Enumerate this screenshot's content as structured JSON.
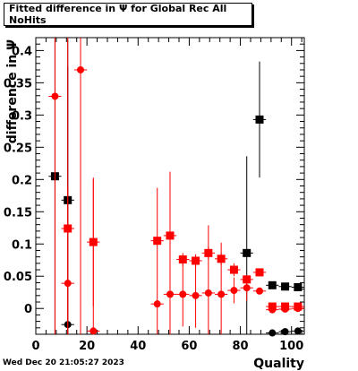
{
  "header": {
    "title": "Fitted difference in Ψ  for Global Rec All NoHits"
  },
  "footer": {
    "timestamp": "Wed Dec 20 21:05:27 2023"
  },
  "chart_data": {
    "type": "scatter",
    "title": "Fitted difference in Ψ  for Global Rec All NoHits",
    "xlabel": "Quality",
    "ylabel": "difference in Ψ",
    "xlim": [
      0,
      105
    ],
    "ylim": [
      -0.04,
      0.42
    ],
    "x_ticks": [
      "0",
      "20",
      "40",
      "60",
      "80",
      "100"
    ],
    "y_ticks": [
      "0",
      "0.05",
      "0.1",
      "0.15",
      "0.2",
      "0.25",
      "0.3",
      "0.35",
      "0.4"
    ],
    "series": [
      {
        "color": "#000000",
        "marker": "square",
        "points": [
          {
            "x": 7.5,
            "y": 0.205,
            "err": 0.42
          },
          {
            "x": 12.5,
            "y": 0.168,
            "err": 0.25
          },
          {
            "x": 82.5,
            "y": 0.086,
            "err": 0.15
          },
          {
            "x": 87.5,
            "y": 0.293,
            "err": 0.09
          },
          {
            "x": 92.5,
            "y": 0.036,
            "err": 0.005
          },
          {
            "x": 97.5,
            "y": 0.034,
            "err": 0.005
          },
          {
            "x": 102.5,
            "y": 0.033,
            "err": 0.005
          }
        ]
      },
      {
        "color": "#000000",
        "marker": "circle",
        "points": [
          {
            "x": 12.5,
            "y": -0.025,
            "err": 0.4
          },
          {
            "x": 92.5,
            "y": -0.038,
            "err": 0.004
          },
          {
            "x": 97.5,
            "y": -0.036,
            "err": 0.004
          },
          {
            "x": 102.5,
            "y": -0.035,
            "err": 0.004
          }
        ]
      },
      {
        "color": "#ff0000",
        "marker": "square",
        "points": [
          {
            "x": 12.5,
            "y": 0.124,
            "err": 0.3
          },
          {
            "x": 22.5,
            "y": 0.103,
            "err": 0.1
          },
          {
            "x": 47.5,
            "y": 0.105,
            "err": 0.005
          },
          {
            "x": 52.5,
            "y": 0.113,
            "err": 0.01
          },
          {
            "x": 57.5,
            "y": 0.076,
            "err": 0.01
          },
          {
            "x": 62.5,
            "y": 0.074,
            "err": 0.01
          },
          {
            "x": 67.5,
            "y": 0.086,
            "err": 0.01
          },
          {
            "x": 72.5,
            "y": 0.077,
            "err": 0.01
          },
          {
            "x": 77.5,
            "y": 0.06,
            "err": 0.01
          },
          {
            "x": 82.5,
            "y": 0.045,
            "err": 0.005
          },
          {
            "x": 87.5,
            "y": 0.056,
            "err": 0.005
          },
          {
            "x": 92.5,
            "y": 0.003,
            "err": 0.003
          },
          {
            "x": 97.5,
            "y": 0.003,
            "err": 0.003
          },
          {
            "x": 102.5,
            "y": 0.003,
            "err": 0.003
          }
        ]
      },
      {
        "color": "#ff0000",
        "marker": "circle",
        "points": [
          {
            "x": 7.5,
            "y": 0.329,
            "err": 0.42
          },
          {
            "x": 12.5,
            "y": 0.039,
            "err": 0.15
          },
          {
            "x": 17.5,
            "y": 0.37,
            "err": 0.42
          },
          {
            "x": 22.5,
            "y": -0.035,
            "err": 0.235
          },
          {
            "x": 47.5,
            "y": 0.007,
            "err": 0.18
          },
          {
            "x": 52.5,
            "y": 0.022,
            "err": 0.19
          },
          {
            "x": 57.5,
            "y": 0.022,
            "err": 0.05
          },
          {
            "x": 62.5,
            "y": 0.02,
            "err": 0.05
          },
          {
            "x": 67.5,
            "y": 0.024,
            "err": 0.105
          },
          {
            "x": 72.5,
            "y": 0.022,
            "err": 0.08
          },
          {
            "x": 77.5,
            "y": 0.028,
            "err": 0.02
          },
          {
            "x": 82.5,
            "y": 0.032,
            "err": 0.02
          },
          {
            "x": 87.5,
            "y": 0.027,
            "err": 0.005
          },
          {
            "x": 92.5,
            "y": -0.002,
            "err": 0.004
          },
          {
            "x": 97.5,
            "y": -0.001,
            "err": 0.004
          },
          {
            "x": 102.5,
            "y": 0.0,
            "err": 0.004
          }
        ]
      }
    ]
  }
}
